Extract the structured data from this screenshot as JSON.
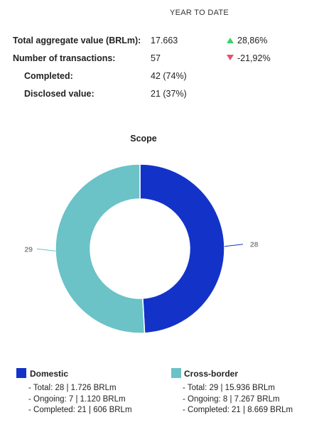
{
  "period_label": "YEAR TO DATE",
  "stats": [
    {
      "label": "Total aggregate value (BRLm):",
      "value": "17.663",
      "change": "28,86%",
      "direction": "up"
    },
    {
      "label": "Number of transactions:",
      "value": "57",
      "change": "-21,92%",
      "direction": "down"
    },
    {
      "label": "Completed:",
      "value": "42 (74%)"
    },
    {
      "label": "Disclosed value:",
      "value": "21 (37%)"
    }
  ],
  "chart_data": {
    "type": "pie",
    "title": "Scope",
    "donut": true,
    "slices": [
      {
        "name": "Domestic",
        "value": 28,
        "label": "28",
        "color": "#1333c8"
      },
      {
        "name": "Cross-border",
        "value": 29,
        "label": "29",
        "color": "#6bc2c7"
      }
    ]
  },
  "legend": [
    {
      "name": "Domestic",
      "color": "#1333c8",
      "lines": [
        "- Total: 28 | 1.726 BRLm",
        "- Ongoing: 7 | 1.120 BRLm",
        "- Completed: 21 | 606 BRLm"
      ]
    },
    {
      "name": "Cross-border",
      "color": "#6bc2c7",
      "lines": [
        "- Total: 29 | 15.936 BRLm",
        "- Ongoing: 8 | 7.267 BRLm",
        "- Completed: 21 | 8.669 BRLm"
      ]
    }
  ]
}
